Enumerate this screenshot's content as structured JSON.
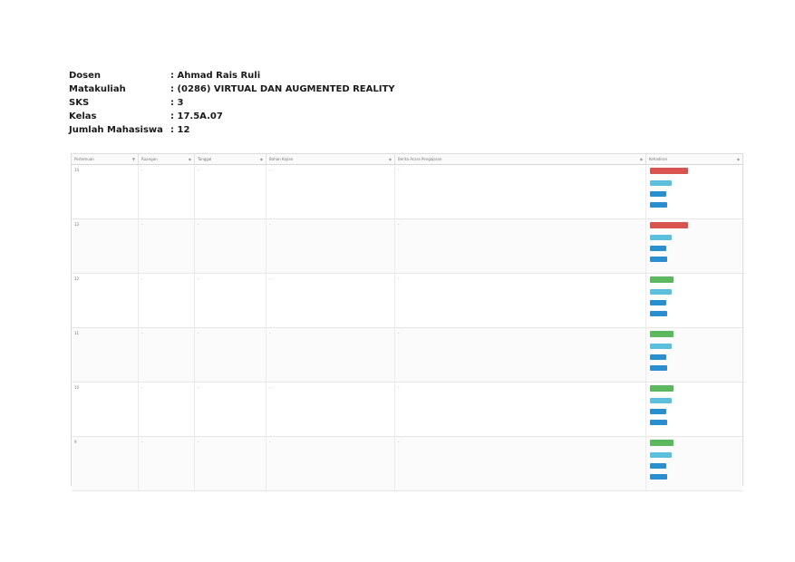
{
  "info": {
    "dosen_label": "Dosen",
    "dosen_value": ": Ahmad Rais Ruli",
    "matakuliah_label": "Matakuliah",
    "matakuliah_value": ": (0286) VIRTUAL DAN AUGMENTED REALITY",
    "sks_label": "SKS",
    "sks_value": ": 3",
    "kelas_label": "Kelas",
    "kelas_value": ": 17.5A.07",
    "jumlah_label": "Jumlah Mahasiswa",
    "jumlah_value": ": 12"
  },
  "table": {
    "headers": [
      "Pertemuan",
      "Ruangan",
      "Tanggal",
      "Bahan Kajian",
      "Berita Acara Pengajaran",
      "Kehadiran"
    ],
    "rows": [
      {
        "pertemuan": "14",
        "ruangan": "-",
        "tanggal": "- ",
        "bahan": "- ",
        "berita": "- ",
        "status": "",
        "status_color": "red",
        "labels": [
          "",
          "",
          ""
        ],
        "buttons": [
          "",
          "",
          ""
        ]
      },
      {
        "pertemuan": "13",
        "ruangan": "-",
        "tanggal": "- ",
        "bahan": "- ",
        "berita": "- ",
        "status": "",
        "status_color": "red",
        "labels": [
          "",
          "",
          ""
        ],
        "buttons": [
          "",
          "",
          ""
        ]
      },
      {
        "pertemuan": "12",
        "ruangan": "-",
        "tanggal": "- ",
        "bahan": "- ",
        "berita": "- ",
        "status": "",
        "status_color": "green",
        "labels": [
          "",
          "",
          ""
        ],
        "buttons": [
          "",
          "",
          ""
        ]
      },
      {
        "pertemuan": "11",
        "ruangan": "-",
        "tanggal": "- ",
        "bahan": "- ",
        "berita": "- ",
        "status": "",
        "status_color": "green",
        "labels": [
          "",
          "",
          ""
        ],
        "buttons": [
          "",
          "",
          ""
        ]
      },
      {
        "pertemuan": "10",
        "ruangan": "-",
        "tanggal": "- ",
        "bahan": "- ",
        "berita": "- ",
        "status": "",
        "status_color": "green",
        "labels": [
          "",
          "",
          ""
        ],
        "buttons": [
          "",
          "",
          ""
        ]
      },
      {
        "pertemuan": "9",
        "ruangan": "-",
        "tanggal": "- ",
        "bahan": "- ",
        "berita": "- ",
        "status": "",
        "status_color": "green",
        "labels": [
          "",
          "",
          ""
        ],
        "buttons": [
          "",
          "",
          ""
        ]
      }
    ]
  }
}
